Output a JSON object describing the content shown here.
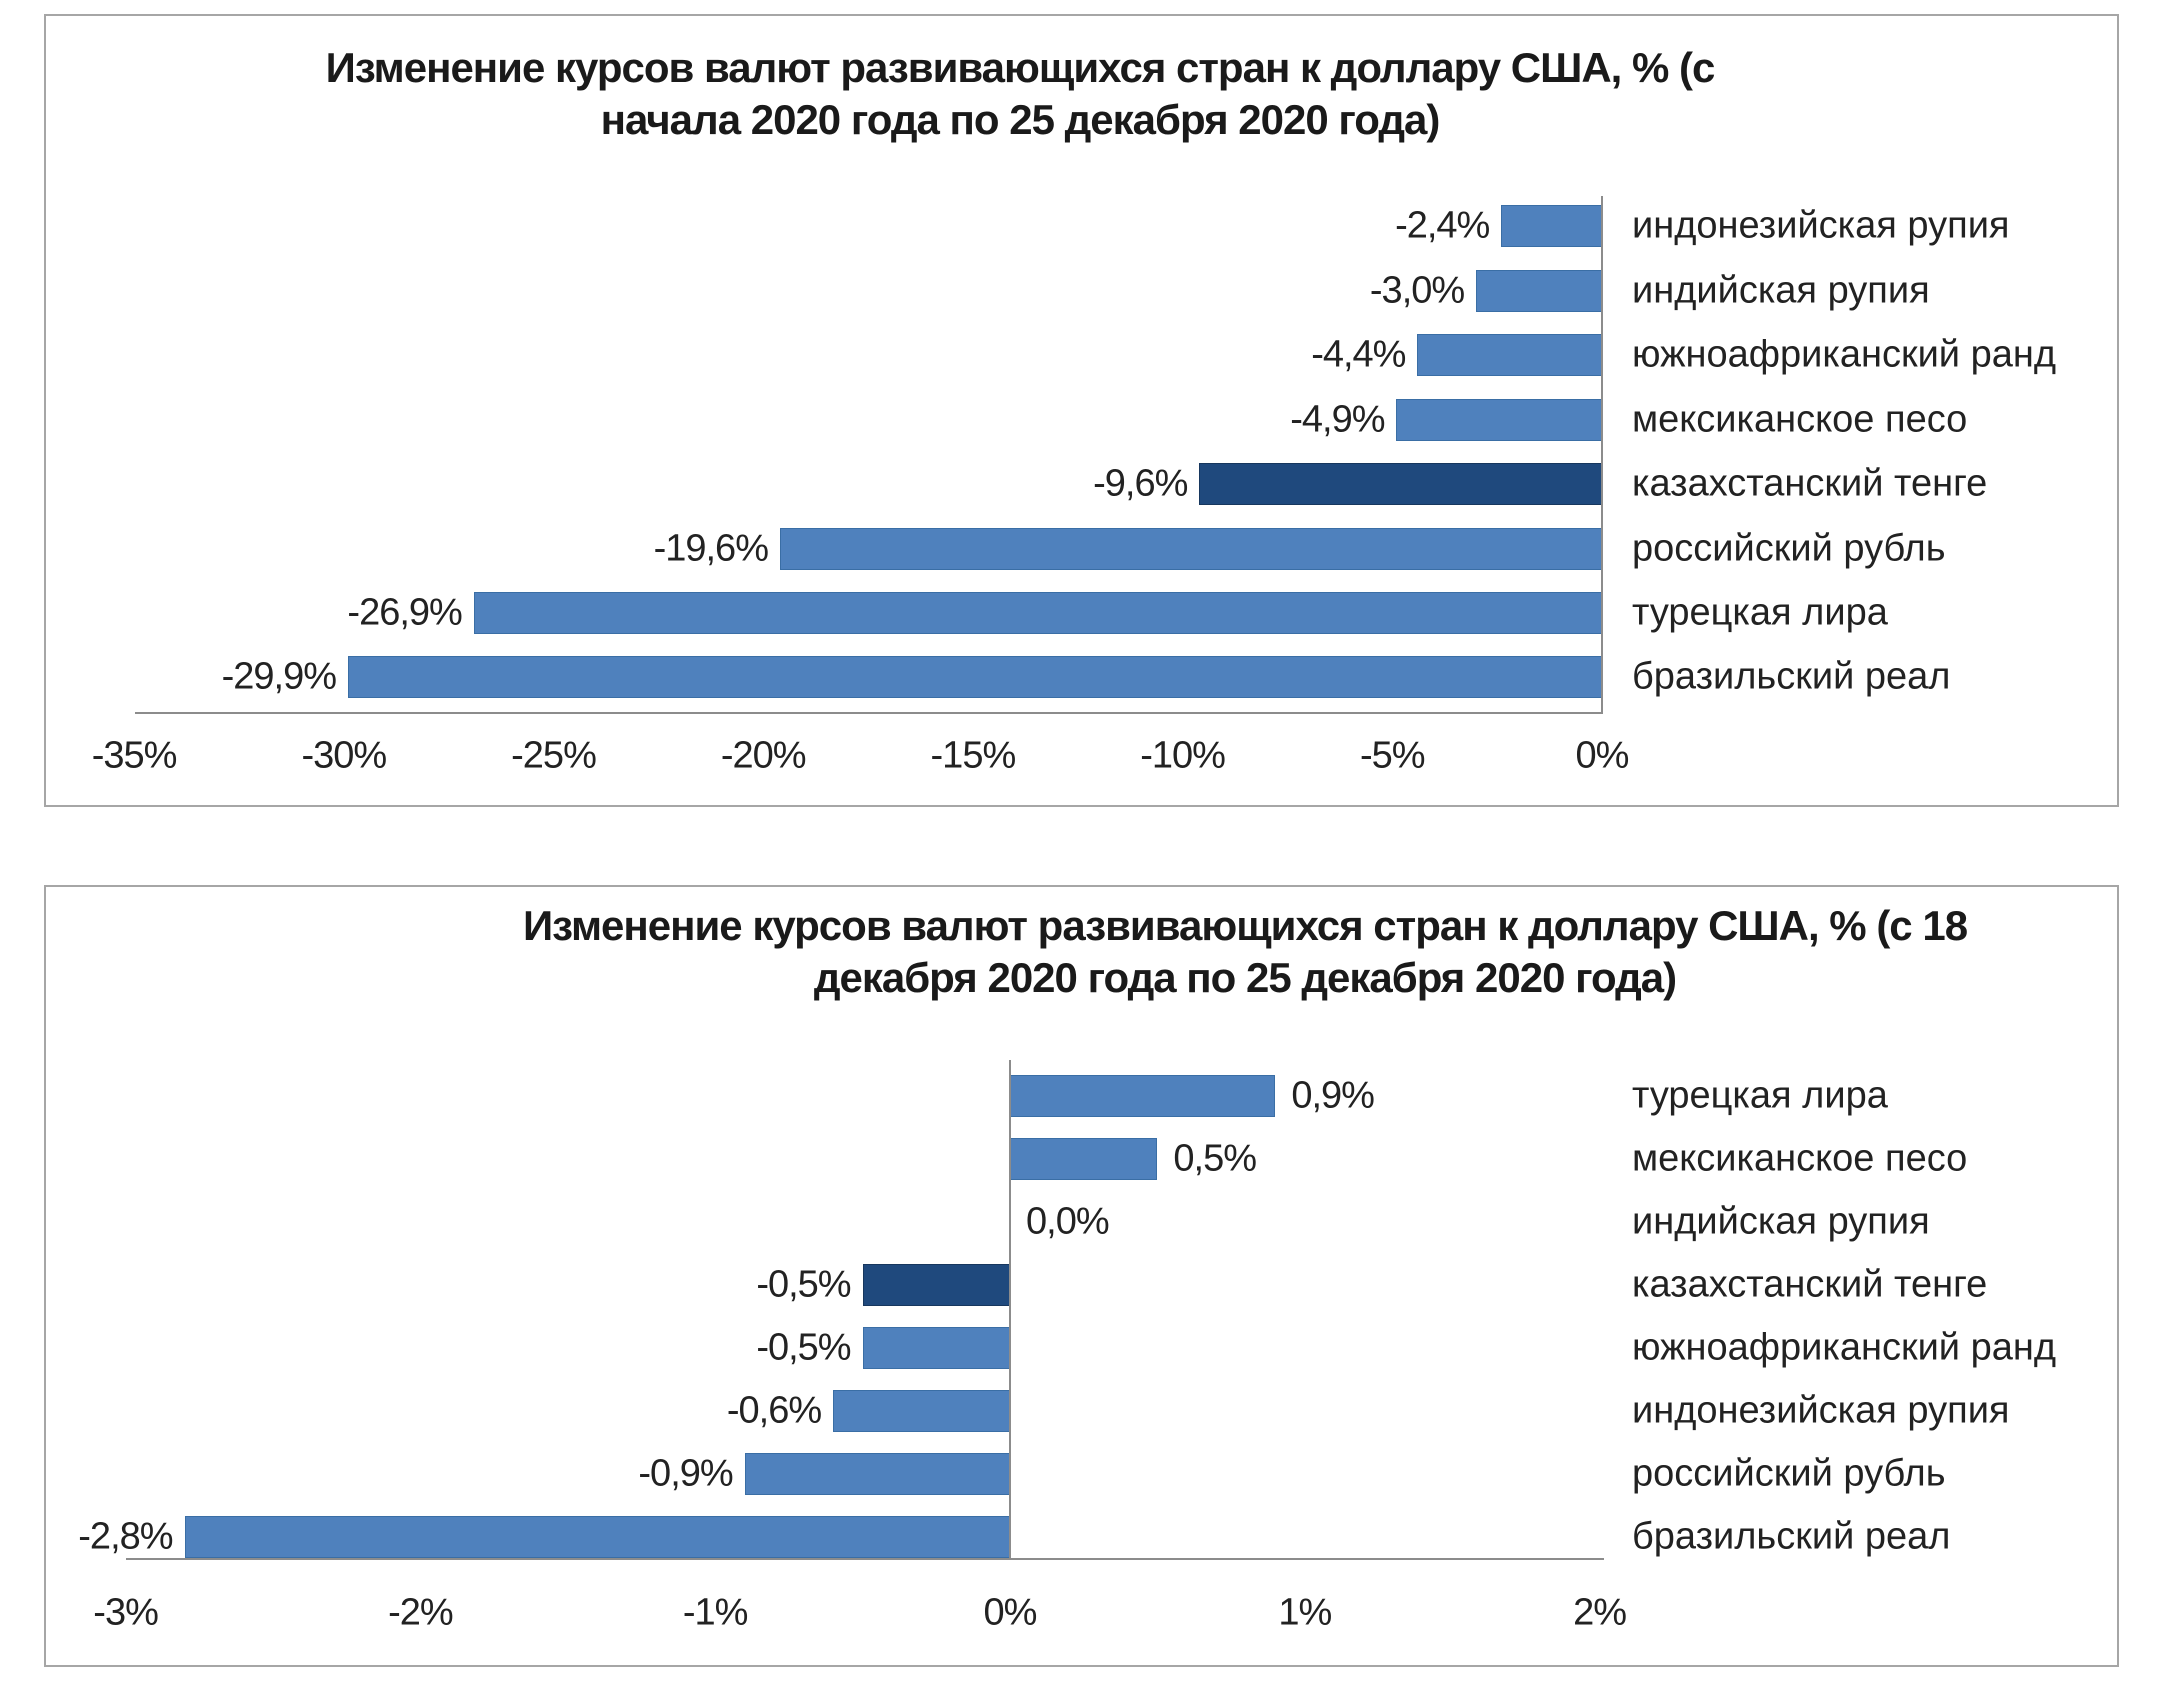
{
  "chart_data": [
    {
      "type": "bar",
      "orientation": "horizontal",
      "title": "Изменение курсов валют развивающихся стран к доллару США, %  (с начала 2020 года по 25 декабря 2020 года)",
      "title_lines": [
        "Изменение курсов валют развивающихся стран к доллару США, %  (с",
        "начала 2020 года по 25 декабря 2020 года)"
      ],
      "categories": [
        "индонезийская рупия",
        "индийская рупия",
        "южноафриканский ранд",
        "мексиканское песо",
        "казахстанский тенге",
        "российский рубль",
        "турецкая лира",
        "бразильский реал"
      ],
      "values": [
        -2.4,
        -3.0,
        -4.4,
        -4.9,
        -9.6,
        -19.6,
        -26.9,
        -29.9
      ],
      "value_labels": [
        "-2,4%",
        "-3,0%",
        "-4,4%",
        "-4,9%",
        "-9,6%",
        "-19,6%",
        "-26,9%",
        "-29,9%"
      ],
      "highlight": "казахстанский тенге",
      "xlim": [
        -35,
        0
      ],
      "xticks": [
        "-35%",
        "-30%",
        "-25%",
        "-20%",
        "-15%",
        "-10%",
        "-5%",
        "0%"
      ],
      "grid": false,
      "legend": "none",
      "colors": {
        "bar": "#4f81bd",
        "highlight": "#1f497d"
      }
    },
    {
      "type": "bar",
      "orientation": "horizontal",
      "title": "Изменение курсов валют развивающихся стран к доллару США, %  (с 18 декабря 2020 года по 25 декабря 2020 года)",
      "title_lines": [
        "Изменение курсов валют развивающихся стран к доллару США, %  (с 18",
        "декабря 2020 года по 25 декабря 2020 года)"
      ],
      "categories": [
        "турецкая лира",
        "мексиканское песо",
        "индийская рупия",
        "казахстанский тенге",
        "южноафриканский ранд",
        "индонезийская рупия",
        "российский рубль",
        "бразильский реал"
      ],
      "values": [
        0.9,
        0.5,
        0.0,
        -0.5,
        -0.5,
        -0.6,
        -0.9,
        -2.8
      ],
      "value_labels": [
        "0,9%",
        "0,5%",
        "0,0%",
        "-0,5%",
        "-0,5%",
        "-0,6%",
        "-0,9%",
        "-2,8%"
      ],
      "highlight": "казахстанский тенге",
      "xlim": [
        -3,
        2
      ],
      "xticks": [
        "-3%",
        "-2%",
        "-1%",
        "0%",
        "1%",
        "2%"
      ],
      "grid": false,
      "legend": "none",
      "colors": {
        "bar": "#4f81bd",
        "highlight": "#1f497d"
      }
    }
  ]
}
